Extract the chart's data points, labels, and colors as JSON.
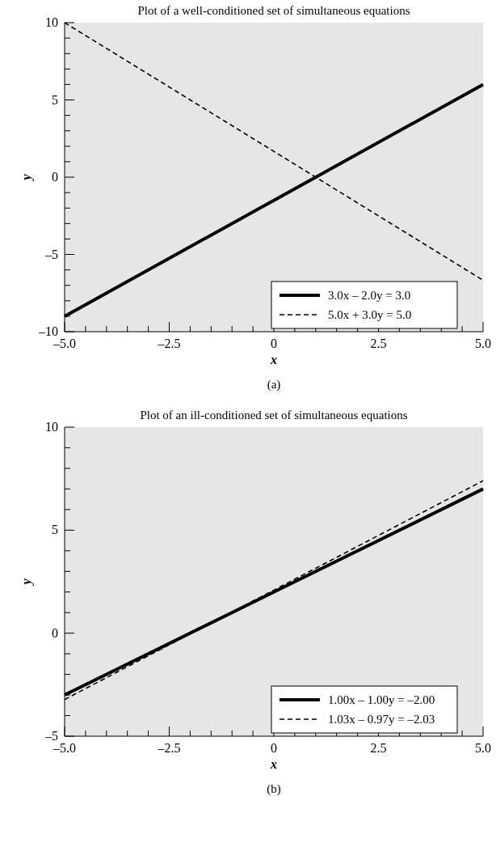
{
  "chart_data": [
    {
      "type": "line",
      "title": "Plot of a well-conditioned set of simultaneous equations",
      "xlabel": "x",
      "ylabel": "y",
      "annotations": [
        "(a)"
      ],
      "legend": "bottom right",
      "grid": false,
      "xlim": [
        -5,
        5
      ],
      "ylim": [
        -10,
        10
      ],
      "xticks": [
        {
          "value": -5,
          "label": "–5.0"
        },
        {
          "value": -4.5,
          "label": null
        },
        {
          "value": -4,
          "label": null
        },
        {
          "value": -3.5,
          "label": null
        },
        {
          "value": -3,
          "label": null
        },
        {
          "value": -2.5,
          "label": "–2.5"
        },
        {
          "value": -2,
          "label": null
        },
        {
          "value": -1.5,
          "label": null
        },
        {
          "value": -1,
          "label": null
        },
        {
          "value": -0.5,
          "label": null
        },
        0,
        {
          "value": 0.5,
          "label": null
        },
        {
          "value": 1,
          "label": null
        },
        {
          "value": 1.5,
          "label": null
        },
        {
          "value": 2,
          "label": null
        },
        {
          "value": 2.5,
          "label": "2.5"
        },
        {
          "value": 3,
          "label": null
        },
        {
          "value": 3.5,
          "label": null
        },
        {
          "value": 4,
          "label": null
        },
        {
          "value": 4.5,
          "label": null
        },
        {
          "value": 5,
          "label": "5.0"
        }
      ],
      "yticks": [
        {
          "value": -10,
          "label": "–10"
        },
        {
          "value": -9,
          "label": null
        },
        {
          "value": -8,
          "label": null
        },
        {
          "value": -7,
          "label": null
        },
        {
          "value": -6,
          "label": null
        },
        {
          "value": -5,
          "label": "–5"
        },
        {
          "value": -4,
          "label": null
        },
        {
          "value": -3,
          "label": null
        },
        {
          "value": -2,
          "label": null
        },
        {
          "value": -1,
          "label": null
        },
        0,
        {
          "value": 1,
          "label": null
        },
        {
          "value": 2,
          "label": null
        },
        {
          "value": 3,
          "label": null
        },
        {
          "value": 4,
          "label": null
        },
        5,
        {
          "value": 6,
          "label": null
        },
        {
          "value": 7,
          "label": null
        },
        {
          "value": 8,
          "label": null
        },
        {
          "value": 9,
          "label": null
        },
        10
      ],
      "series": [
        {
          "name": "3.0x – 2.0y = 3.0",
          "color": "#000000",
          "line_style": "solid",
          "x": [
            -5,
            0,
            5
          ],
          "values": [
            -9,
            -1.5,
            6
          ]
        },
        {
          "name": "5.0x + 3.0y = 5.0",
          "color": "#000000",
          "line_style": "dashed",
          "x": [
            -5,
            0,
            5
          ],
          "values": [
            10,
            1.67,
            -6.67
          ]
        }
      ]
    },
    {
      "type": "line",
      "title": "Plot of an ill-conditioned set of simultaneous equations",
      "xlabel": "x",
      "ylabel": "y",
      "annotations": [
        "(b)"
      ],
      "legend": "bottom right",
      "grid": false,
      "xlim": [
        -5,
        5
      ],
      "ylim": [
        -5,
        10
      ],
      "xticks": [
        {
          "value": -5,
          "label": "–5.0"
        },
        {
          "value": -4.5,
          "label": null
        },
        {
          "value": -4,
          "label": null
        },
        {
          "value": -3.5,
          "label": null
        },
        {
          "value": -3,
          "label": null
        },
        {
          "value": -2.5,
          "label": "–2.5"
        },
        {
          "value": -2,
          "label": null
        },
        {
          "value": -1.5,
          "label": null
        },
        {
          "value": -1,
          "label": null
        },
        {
          "value": -0.5,
          "label": null
        },
        0,
        {
          "value": 0.5,
          "label": null
        },
        {
          "value": 1,
          "label": null
        },
        {
          "value": 1.5,
          "label": null
        },
        {
          "value": 2,
          "label": null
        },
        {
          "value": 2.5,
          "label": "2.5"
        },
        {
          "value": 3,
          "label": null
        },
        {
          "value": 3.5,
          "label": null
        },
        {
          "value": 4,
          "label": null
        },
        {
          "value": 4.5,
          "label": null
        },
        {
          "value": 5,
          "label": "5.0"
        }
      ],
      "yticks": [
        {
          "value": -5,
          "label": "–5"
        },
        {
          "value": -4,
          "label": null
        },
        {
          "value": -3,
          "label": null
        },
        {
          "value": -2,
          "label": null
        },
        {
          "value": -1,
          "label": null
        },
        0,
        {
          "value": 1,
          "label": null
        },
        {
          "value": 2,
          "label": null
        },
        {
          "value": 3,
          "label": null
        },
        {
          "value": 4,
          "label": null
        },
        5,
        {
          "value": 6,
          "label": null
        },
        {
          "value": 7,
          "label": null
        },
        {
          "value": 8,
          "label": null
        },
        {
          "value": 9,
          "label": null
        },
        10
      ],
      "series": [
        {
          "name": "1.00x – 1.00y = –2.00",
          "color": "#000000",
          "line_style": "solid",
          "x": [
            -5,
            0,
            5
          ],
          "values": [
            -3,
            2,
            7
          ]
        },
        {
          "name": "1.03x – 0.97y = –2.03",
          "color": "#000000",
          "line_style": "dashed",
          "x": [
            -5,
            0,
            5
          ],
          "values": [
            -3.22,
            2.09,
            7.4
          ]
        }
      ]
    }
  ]
}
